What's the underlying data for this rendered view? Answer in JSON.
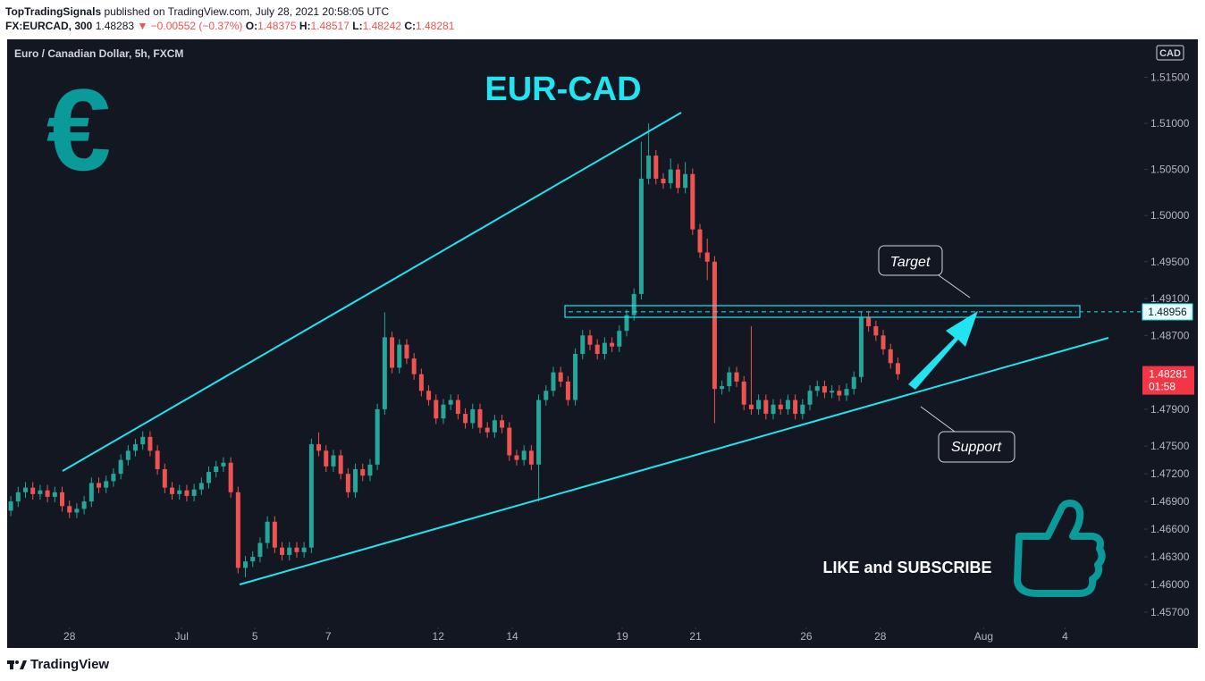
{
  "header": {
    "author": "TopTradingSignals",
    "published": "published on TradingView.com, July 28, 2021 20:58:05 UTC",
    "symbol": "FX:EURCAD, 300",
    "last": "1.48283",
    "arrow": "▼",
    "change": "−0.00552 (−0.37%)",
    "o_label": "O:",
    "o": "1.48375",
    "h_label": "H:",
    "h": "1.48517",
    "l_label": "L:",
    "l": "1.48242",
    "c_label": "C:",
    "c": "1.48281"
  },
  "chart_data": {
    "type": "candlestick",
    "title": "EUR-CAD",
    "legend": "Euro / Canadian Dollar, 5h, FXCM",
    "currency": "CAD",
    "symbol_icon": "€",
    "up_color": "#26a69a",
    "down_color": "#ef5350",
    "accent_color": "#22e3f0",
    "grid": false,
    "ylim": [
      1.45554,
      1.51911
    ],
    "yticks": [
      {
        "value": 1.515,
        "label": "1.51500"
      },
      {
        "value": 1.51,
        "label": "1.51000"
      },
      {
        "value": 1.505,
        "label": "1.50500"
      },
      {
        "value": 1.5,
        "label": "1.50000"
      },
      {
        "value": 1.495,
        "label": "1.49500"
      },
      {
        "value": 1.491,
        "label": "1.49100"
      },
      {
        "value": 1.487,
        "label": "1.48700"
      },
      {
        "value": 1.479,
        "label": "1.47900"
      },
      {
        "value": 1.475,
        "label": "1.47500"
      },
      {
        "value": 1.472,
        "label": "1.47200"
      },
      {
        "value": 1.469,
        "label": "1.46900"
      },
      {
        "value": 1.466,
        "label": "1.46600"
      },
      {
        "value": 1.463,
        "label": "1.46300"
      },
      {
        "value": 1.46,
        "label": "1.46000"
      },
      {
        "value": 1.457,
        "label": "1.45700"
      }
    ],
    "xlim": [
      -0.5,
      154.6
    ],
    "xticks": [
      {
        "value": 8,
        "label": "28"
      },
      {
        "value": 23.3,
        "label": "Jul"
      },
      {
        "value": 33.3,
        "label": "5"
      },
      {
        "value": 43.3,
        "label": "7"
      },
      {
        "value": 58.3,
        "label": "12"
      },
      {
        "value": 68.4,
        "label": "14"
      },
      {
        "value": 83.4,
        "label": "19"
      },
      {
        "value": 93.4,
        "label": "21"
      },
      {
        "value": 108.5,
        "label": "26"
      },
      {
        "value": 118.6,
        "label": "28"
      },
      {
        "value": 132.7,
        "label": "Aug"
      },
      {
        "value": 143.8,
        "label": "4"
      }
    ],
    "target_price": 1.48956,
    "last_price": 1.48281,
    "countdown": "01:58",
    "annotations": [
      "Target",
      "Support",
      "LIKE and SUBSCRIBE"
    ],
    "ohlc": [
      [
        1.468,
        1.4696,
        1.4674,
        1.469
      ],
      [
        1.469,
        1.4706,
        1.4684,
        1.47
      ],
      [
        1.47,
        1.4711,
        1.4694,
        1.4705
      ],
      [
        1.4705,
        1.4711,
        1.4692,
        1.4698
      ],
      [
        1.4698,
        1.4708,
        1.4692,
        1.4702
      ],
      [
        1.4702,
        1.4708,
        1.4689,
        1.4695
      ],
      [
        1.4695,
        1.4706,
        1.4689,
        1.47
      ],
      [
        1.47,
        1.4706,
        1.4679,
        1.4685
      ],
      [
        1.4685,
        1.4691,
        1.4672,
        1.4678
      ],
      [
        1.4678,
        1.4688,
        1.4672,
        1.4682
      ],
      [
        1.4682,
        1.4696,
        1.4676,
        1.469
      ],
      [
        1.469,
        1.4716,
        1.4684,
        1.471
      ],
      [
        1.471,
        1.4716,
        1.4699,
        1.4705
      ],
      [
        1.4705,
        1.4718,
        1.4699,
        1.4712
      ],
      [
        1.4712,
        1.4726,
        1.4706,
        1.472
      ],
      [
        1.472,
        1.4741,
        1.4714,
        1.4735
      ],
      [
        1.4735,
        1.4751,
        1.4729,
        1.4745
      ],
      [
        1.4745,
        1.4758,
        1.4739,
        1.4752
      ],
      [
        1.4752,
        1.4766,
        1.4746,
        1.476
      ],
      [
        1.476,
        1.4766,
        1.4739,
        1.4745
      ],
      [
        1.4745,
        1.4751,
        1.4719,
        1.4725
      ],
      [
        1.4725,
        1.4731,
        1.4699,
        1.4705
      ],
      [
        1.4705,
        1.4711,
        1.4692,
        1.4698
      ],
      [
        1.4698,
        1.4708,
        1.4692,
        1.4702
      ],
      [
        1.4702,
        1.4708,
        1.469,
        1.4696
      ],
      [
        1.4696,
        1.4709,
        1.469,
        1.4703
      ],
      [
        1.4703,
        1.4716,
        1.4697,
        1.471
      ],
      [
        1.471,
        1.4728,
        1.4704,
        1.4722
      ],
      [
        1.4722,
        1.4734,
        1.4716,
        1.4728
      ],
      [
        1.4728,
        1.4738,
        1.4722,
        1.4732
      ],
      [
        1.4732,
        1.4738,
        1.4694,
        1.47
      ],
      [
        1.47,
        1.4706,
        1.4612,
        1.4618
      ],
      [
        1.4618,
        1.4631,
        1.4608,
        1.4625
      ],
      [
        1.4625,
        1.4636,
        1.4619,
        1.463
      ],
      [
        1.463,
        1.4651,
        1.4624,
        1.4645
      ],
      [
        1.4645,
        1.4674,
        1.4639,
        1.4668
      ],
      [
        1.4668,
        1.4674,
        1.4634,
        1.464
      ],
      [
        1.464,
        1.4646,
        1.4626,
        1.4632
      ],
      [
        1.4632,
        1.4646,
        1.4626,
        1.464
      ],
      [
        1.464,
        1.4646,
        1.4629,
        1.4635
      ],
      [
        1.4635,
        1.4646,
        1.4629,
        1.464
      ],
      [
        1.464,
        1.4758,
        1.4634,
        1.4752
      ],
      [
        1.4752,
        1.4765,
        1.4739,
        1.4745
      ],
      [
        1.4745,
        1.4751,
        1.4722,
        1.4728
      ],
      [
        1.4728,
        1.4746,
        1.4722,
        1.474
      ],
      [
        1.474,
        1.4746,
        1.4714,
        1.472
      ],
      [
        1.472,
        1.4726,
        1.4694,
        1.47
      ],
      [
        1.47,
        1.4731,
        1.4694,
        1.4725
      ],
      [
        1.4725,
        1.4731,
        1.4712,
        1.4718
      ],
      [
        1.4718,
        1.4736,
        1.4712,
        1.473
      ],
      [
        1.473,
        1.4796,
        1.4724,
        1.479
      ],
      [
        1.479,
        1.4895,
        1.4784,
        1.4868
      ],
      [
        1.4868,
        1.4874,
        1.4829,
        1.4835
      ],
      [
        1.4835,
        1.4866,
        1.4829,
        1.486
      ],
      [
        1.486,
        1.4866,
        1.4839,
        1.4845
      ],
      [
        1.4845,
        1.4851,
        1.4822,
        1.4828
      ],
      [
        1.4828,
        1.4834,
        1.4804,
        1.481
      ],
      [
        1.481,
        1.4816,
        1.4794,
        1.48
      ],
      [
        1.48,
        1.4806,
        1.4774,
        1.478
      ],
      [
        1.478,
        1.4801,
        1.4774,
        1.4795
      ],
      [
        1.4795,
        1.4806,
        1.4789,
        1.48
      ],
      [
        1.48,
        1.4806,
        1.4779,
        1.4785
      ],
      [
        1.4785,
        1.4791,
        1.4769,
        1.4775
      ],
      [
        1.4775,
        1.4796,
        1.4769,
        1.479
      ],
      [
        1.479,
        1.4796,
        1.4764,
        1.477
      ],
      [
        1.477,
        1.4776,
        1.4759,
        1.4765
      ],
      [
        1.4765,
        1.4784,
        1.4759,
        1.4778
      ],
      [
        1.4778,
        1.4784,
        1.4764,
        1.477
      ],
      [
        1.477,
        1.4776,
        1.4734,
        1.474
      ],
      [
        1.474,
        1.4746,
        1.4729,
        1.4735
      ],
      [
        1.4735,
        1.4751,
        1.4729,
        1.4745
      ],
      [
        1.4745,
        1.4751,
        1.4724,
        1.473
      ],
      [
        1.473,
        1.4806,
        1.469,
        1.48
      ],
      [
        1.48,
        1.4816,
        1.4794,
        1.481
      ],
      [
        1.481,
        1.4836,
        1.4804,
        1.483
      ],
      [
        1.483,
        1.4836,
        1.4814,
        1.482
      ],
      [
        1.482,
        1.4826,
        1.4794,
        1.48
      ],
      [
        1.48,
        1.4856,
        1.4794,
        1.485
      ],
      [
        1.485,
        1.4876,
        1.4844,
        1.487
      ],
      [
        1.487,
        1.4876,
        1.4854,
        1.486
      ],
      [
        1.486,
        1.4866,
        1.4844,
        1.485
      ],
      [
        1.485,
        1.4868,
        1.4844,
        1.4862
      ],
      [
        1.4862,
        1.4868,
        1.4852,
        1.4858
      ],
      [
        1.4858,
        1.4881,
        1.4852,
        1.4875
      ],
      [
        1.4875,
        1.4898,
        1.4869,
        1.4892
      ],
      [
        1.4892,
        1.4921,
        1.4886,
        1.4915
      ],
      [
        1.4915,
        1.508,
        1.4909,
        1.504
      ],
      [
        1.504,
        1.51,
        1.5034,
        1.5065
      ],
      [
        1.5065,
        1.5071,
        1.5034,
        1.504
      ],
      [
        1.504,
        1.5046,
        1.5029,
        1.5035
      ],
      [
        1.5035,
        1.5062,
        1.5029,
        1.505
      ],
      [
        1.505,
        1.5056,
        1.5024,
        1.503
      ],
      [
        1.503,
        1.5058,
        1.5024,
        1.5045
      ],
      [
        1.5045,
        1.5051,
        1.4979,
        1.4985
      ],
      [
        1.4985,
        1.4991,
        1.4954,
        1.496
      ],
      [
        1.496,
        1.4975,
        1.493,
        1.495
      ],
      [
        1.495,
        1.4956,
        1.4775,
        1.4812
      ],
      [
        1.4812,
        1.4821,
        1.4806,
        1.4815
      ],
      [
        1.4815,
        1.4836,
        1.4809,
        1.483
      ],
      [
        1.483,
        1.4836,
        1.4814,
        1.482
      ],
      [
        1.482,
        1.4826,
        1.4789,
        1.4795
      ],
      [
        1.4795,
        1.488,
        1.4784,
        1.479
      ],
      [
        1.479,
        1.4806,
        1.4784,
        1.48
      ],
      [
        1.48,
        1.4806,
        1.4779,
        1.4785
      ],
      [
        1.4785,
        1.4801,
        1.4779,
        1.4795
      ],
      [
        1.4795,
        1.4801,
        1.4784,
        1.479
      ],
      [
        1.479,
        1.4806,
        1.4784,
        1.48
      ],
      [
        1.48,
        1.4806,
        1.4779,
        1.4785
      ],
      [
        1.4785,
        1.4801,
        1.4779,
        1.4795
      ],
      [
        1.4795,
        1.4816,
        1.4789,
        1.481
      ],
      [
        1.481,
        1.4821,
        1.4804,
        1.4815
      ],
      [
        1.4815,
        1.4821,
        1.4802,
        1.4808
      ],
      [
        1.4808,
        1.4816,
        1.4802,
        1.481
      ],
      [
        1.481,
        1.4816,
        1.4799,
        1.4805
      ],
      [
        1.4805,
        1.4818,
        1.4799,
        1.4812
      ],
      [
        1.4812,
        1.4831,
        1.4806,
        1.4825
      ],
      [
        1.4825,
        1.4896,
        1.4819,
        1.489
      ],
      [
        1.489,
        1.4896,
        1.4874,
        1.488
      ],
      [
        1.488,
        1.4886,
        1.4864,
        1.487
      ],
      [
        1.487,
        1.4876,
        1.4849,
        1.4855
      ],
      [
        1.4855,
        1.4861,
        1.4834,
        1.484
      ],
      [
        1.484,
        1.4846,
        1.4822,
        1.4828
      ]
    ]
  },
  "footer": {
    "brand": "TradingView"
  }
}
